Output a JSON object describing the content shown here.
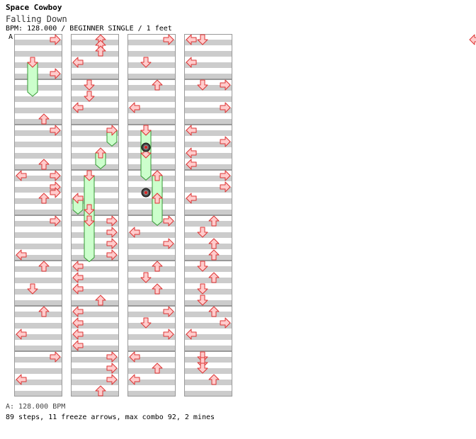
{
  "song": {
    "title": "Space Cowboy",
    "subtitle": "Falling Down",
    "meta": "BPM: 128.000 / BEGINNER SINGLE / 1 feet",
    "bpm_marker": "A"
  },
  "footer": {
    "bpm_line": "A: 128.000 BPM",
    "stats": "89 steps, 11 freeze arrows, max combo 92, 2 mines"
  },
  "colors": {
    "stripe": "#cccccc",
    "arrow_fill": "#ffcccc",
    "arrow_stroke": "#dd3333",
    "freeze_fill": "#ccffcc",
    "freeze_stroke": "#339933",
    "border": "#999999"
  },
  "chart_data": {
    "type": "step-chart",
    "mode": "BEGINNER SINGLE",
    "measures": 32,
    "measures_per_column": 8,
    "lanes": [
      "left",
      "down",
      "up",
      "right"
    ],
    "notes": [
      {
        "m": 0,
        "b": 0,
        "d": "right"
      },
      {
        "m": 1,
        "b": 0.5,
        "d": "right"
      },
      {
        "m": 3,
        "b": 0.5,
        "d": "up"
      },
      {
        "m": 4,
        "b": 0,
        "d": "right"
      },
      {
        "m": 5,
        "b": 0.5,
        "d": "up"
      },
      {
        "m": 6,
        "b": 0,
        "d": "left"
      },
      {
        "m": 6,
        "b": 0,
        "d": "right"
      },
      {
        "m": 6,
        "b": 0.5,
        "d": "right"
      },
      {
        "m": 6,
        "b": 0.75,
        "d": "right"
      },
      {
        "m": 7,
        "b": 0,
        "d": "up"
      },
      {
        "m": 8,
        "b": 0,
        "d": "right"
      },
      {
        "m": 9,
        "b": 0.5,
        "d": "left"
      },
      {
        "m": 10,
        "b": 0,
        "d": "up"
      },
      {
        "m": 11,
        "b": 0,
        "d": "down"
      },
      {
        "m": 12,
        "b": 0,
        "d": "up"
      },
      {
        "m": 13,
        "b": 0,
        "d": "left"
      },
      {
        "m": 14,
        "b": 0,
        "d": "right"
      },
      {
        "m": 15,
        "b": 0,
        "d": "left"
      },
      {
        "m": 16,
        "b": 0,
        "d": "up"
      },
      {
        "m": 16,
        "b": 0.25,
        "d": "up"
      },
      {
        "m": 16,
        "b": 0.5,
        "d": "up"
      },
      {
        "m": 17,
        "b": 0,
        "d": "left"
      },
      {
        "m": 18,
        "b": 0,
        "d": "down"
      },
      {
        "m": 18,
        "b": 0.5,
        "d": "down"
      },
      {
        "m": 19,
        "b": 0,
        "d": "left"
      },
      {
        "m": 24,
        "b": 0,
        "d": "right"
      },
      {
        "m": 24,
        "b": 0.5,
        "d": "right"
      },
      {
        "m": 25,
        "b": 0,
        "d": "right"
      },
      {
        "m": 25,
        "b": 0.5,
        "d": "right"
      },
      {
        "m": 26,
        "b": 0,
        "d": "left"
      },
      {
        "m": 26,
        "b": 0.5,
        "d": "left"
      },
      {
        "m": 27,
        "b": 0,
        "d": "left"
      },
      {
        "m": 27,
        "b": 0.5,
        "d": "up"
      },
      {
        "m": 28,
        "b": 0,
        "d": "left"
      },
      {
        "m": 28,
        "b": 0.5,
        "d": "left"
      },
      {
        "m": 29,
        "b": 0,
        "d": "left"
      },
      {
        "m": 29,
        "b": 0.5,
        "d": "left"
      },
      {
        "m": 30,
        "b": 0,
        "d": "right"
      },
      {
        "m": 30,
        "b": 0.5,
        "d": "right"
      },
      {
        "m": 31,
        "b": 0,
        "d": "right"
      },
      {
        "m": 31,
        "b": 0.5,
        "d": "up"
      },
      {
        "m": 32,
        "b": 0,
        "d": "right"
      },
      {
        "m": 33,
        "b": 0,
        "d": "down"
      },
      {
        "m": 34,
        "b": 0,
        "d": "up"
      },
      {
        "m": 35,
        "b": 0,
        "d": "left"
      },
      {
        "m": 36,
        "b": 0,
        "d": "down"
      },
      {
        "m": 37,
        "b": 0,
        "d": "down"
      },
      {
        "m": 38,
        "b": 0,
        "d": "up"
      },
      {
        "m": 39,
        "b": 0,
        "d": "up"
      },
      {
        "m": 40,
        "b": 0,
        "d": "right"
      },
      {
        "m": 40,
        "b": 0.5,
        "d": "left"
      },
      {
        "m": 41,
        "b": 0,
        "d": "right"
      },
      {
        "m": 42,
        "b": 0,
        "d": "up"
      },
      {
        "m": 42,
        "b": 0.5,
        "d": "down"
      },
      {
        "m": 43,
        "b": 0,
        "d": "up"
      },
      {
        "m": 44,
        "b": 0,
        "d": "right"
      },
      {
        "m": 44,
        "b": 0.5,
        "d": "down"
      },
      {
        "m": 45,
        "b": 0,
        "d": "right"
      },
      {
        "m": 46,
        "b": 0,
        "d": "left"
      },
      {
        "m": 46,
        "b": 0.5,
        "d": "up"
      },
      {
        "m": 47,
        "b": 0,
        "d": "left"
      },
      {
        "m": 48,
        "b": 0,
        "d": "left"
      },
      {
        "m": 48,
        "b": 0,
        "d": "down"
      },
      {
        "m": 49,
        "b": 0,
        "d": "left"
      },
      {
        "m": 50,
        "b": 0,
        "d": "down"
      },
      {
        "m": 50,
        "b": 0,
        "d": "right"
      },
      {
        "m": 51,
        "b": 0,
        "d": "right"
      },
      {
        "m": 52,
        "b": 0,
        "d": "left"
      },
      {
        "m": 52,
        "b": 0.5,
        "d": "right"
      },
      {
        "m": 53,
        "b": 0,
        "d": "left"
      },
      {
        "m": 53,
        "b": 0.5,
        "d": "left"
      },
      {
        "m": 54,
        "b": 0,
        "d": "right"
      },
      {
        "m": 54,
        "b": 0.5,
        "d": "right"
      },
      {
        "m": 55,
        "b": 0,
        "d": "left"
      },
      {
        "m": 56,
        "b": 0,
        "d": "up"
      },
      {
        "m": 56,
        "b": 0.5,
        "d": "down"
      },
      {
        "m": 57,
        "b": 0,
        "d": "up"
      },
      {
        "m": 57,
        "b": 0.5,
        "d": "up"
      },
      {
        "m": 58,
        "b": 0,
        "d": "down"
      },
      {
        "m": 58,
        "b": 0.5,
        "d": "up"
      },
      {
        "m": 59,
        "b": 0,
        "d": "down"
      },
      {
        "m": 59,
        "b": 0.5,
        "d": "down"
      },
      {
        "m": 60,
        "b": 0,
        "d": "up"
      },
      {
        "m": 60,
        "b": 0.5,
        "d": "right"
      },
      {
        "m": 61,
        "b": 0,
        "d": "left"
      },
      {
        "m": 62,
        "b": 0,
        "d": "down"
      },
      {
        "m": 62,
        "b": 0.25,
        "d": "down"
      },
      {
        "m": 62,
        "b": 0.5,
        "d": "down"
      },
      {
        "m": 63,
        "b": 0,
        "d": "up"
      }
    ],
    "freezes": [
      {
        "m": 1,
        "b": 0,
        "d": "down",
        "len": 0.75
      },
      {
        "m": 20,
        "b": 0,
        "d": "right",
        "len": 0.35
      },
      {
        "m": 21,
        "b": 0,
        "d": "up",
        "len": 0.35
      },
      {
        "m": 22,
        "b": 0,
        "d": "down",
        "len": 0.9
      },
      {
        "m": 23,
        "b": 0,
        "d": "left",
        "len": 0.35
      },
      {
        "m": 23,
        "b": 0.5,
        "d": "down",
        "len": 0.35
      },
      {
        "m": 24,
        "b": 0,
        "d": "down",
        "len": 0.9
      },
      {
        "m": 36,
        "b": 0,
        "d": "down",
        "len": 0.6
      },
      {
        "m": 37,
        "b": 0,
        "d": "down",
        "len": 0.6
      },
      {
        "m": 38,
        "b": 0,
        "d": "up",
        "len": 0.6
      },
      {
        "m": 39,
        "b": 0,
        "d": "up",
        "len": 0.6
      }
    ],
    "mines": [
      {
        "m": 36,
        "b": 0.75,
        "d": "down"
      },
      {
        "m": 38,
        "b": 0.75,
        "d": "down"
      }
    ]
  }
}
